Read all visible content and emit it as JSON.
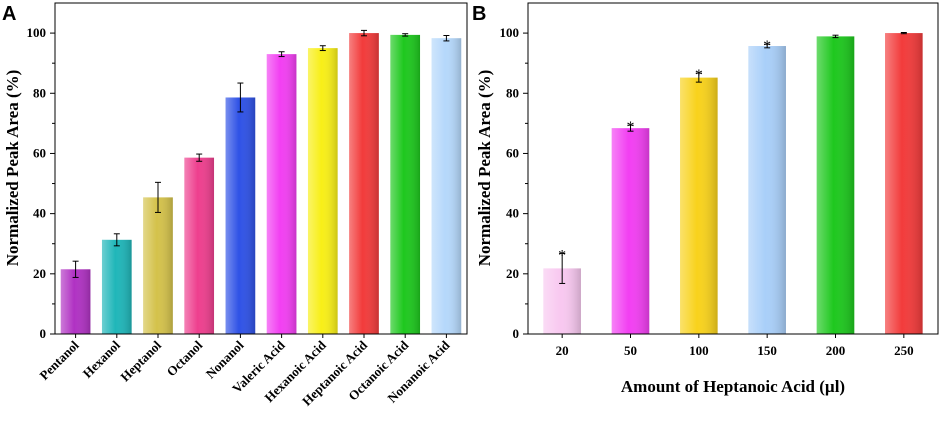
{
  "chart_data": [
    {
      "panel": "A",
      "type": "bar",
      "title": "",
      "xlabel": "",
      "ylabel": "Normalized Peak Area (%)",
      "ylim": [
        0,
        110
      ],
      "yticks": [
        0,
        20,
        40,
        60,
        80,
        100
      ],
      "grid": false,
      "categories": [
        "Pentanol",
        "Hexanol",
        "Heptanol",
        "Octanol",
        "Nonanol",
        "Valeric Acid",
        "Hexanoic Acid",
        "Heptanoic Acid",
        "Octanoic Acid",
        "Nonanoic Acid"
      ],
      "values": [
        21.5,
        31.3,
        45.4,
        58.6,
        78.6,
        93.0,
        95.0,
        100.0,
        99.4,
        98.3
      ],
      "errors": [
        2.7,
        2.0,
        5.0,
        1.2,
        4.8,
        0.8,
        0.8,
        0.9,
        0.4,
        0.9
      ],
      "colors": [
        "#b032c3",
        "#1fb6b9",
        "#d4c24b",
        "#ee3f8e",
        "#2f52e6",
        "#f23ff2",
        "#f8ef17",
        "#f23b3b",
        "#1ec81e",
        "#b5d8fb"
      ]
    },
    {
      "panel": "B",
      "type": "bar",
      "title": "",
      "xlabel": "Amount of Heptanoic Acid (µl)",
      "ylabel": "Normalized Peak Area (%)",
      "ylim": [
        0,
        110
      ],
      "yticks": [
        0,
        20,
        40,
        60,
        80,
        100
      ],
      "grid": false,
      "categories": [
        "20",
        "50",
        "100",
        "150",
        "200",
        "250"
      ],
      "values": [
        21.8,
        68.4,
        85.2,
        95.7,
        98.9,
        100.0
      ],
      "errors": [
        5.0,
        1.0,
        1.5,
        0.6,
        0.4,
        0.2
      ],
      "annotations": [
        "*",
        "*",
        "*",
        "*",
        "",
        ""
      ],
      "colors": [
        "#f8c8f0",
        "#f23ff2",
        "#f8d21c",
        "#a9cff9",
        "#1ec81e",
        "#f23b3b"
      ]
    }
  ]
}
